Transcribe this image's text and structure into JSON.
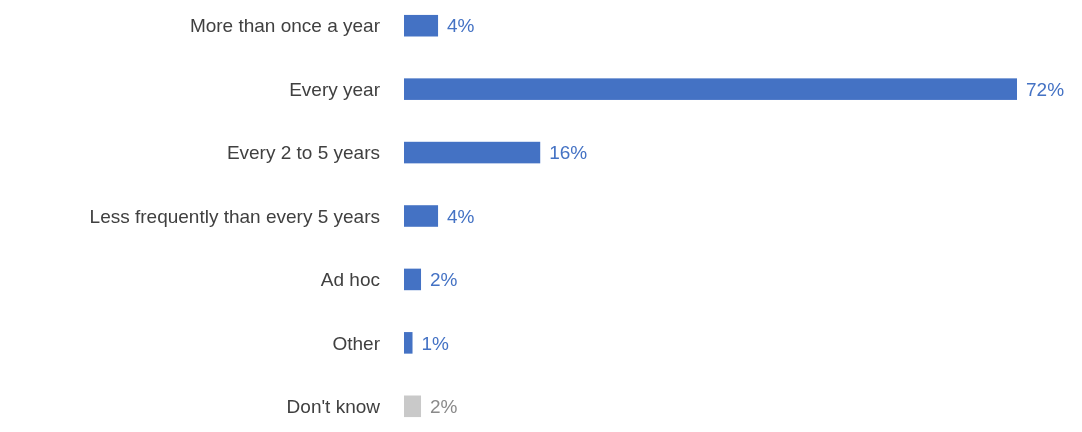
{
  "chart_data": {
    "type": "bar",
    "orientation": "horizontal",
    "categories": [
      "More than once a year",
      "Every year",
      "Every 2 to 5 years",
      "Less frequently than every 5 years",
      "Ad hoc",
      "Other",
      "Don't know"
    ],
    "values": [
      4,
      72,
      16,
      4,
      2,
      1,
      2
    ],
    "colors": [
      "#4472c4",
      "#4472c4",
      "#4472c4",
      "#4472c4",
      "#4472c4",
      "#4472c4",
      "#c9c9c9"
    ],
    "value_labels": [
      "4%",
      "72%",
      "16%",
      "4%",
      "2%",
      "1%",
      "2%"
    ],
    "data_labels": true
  }
}
